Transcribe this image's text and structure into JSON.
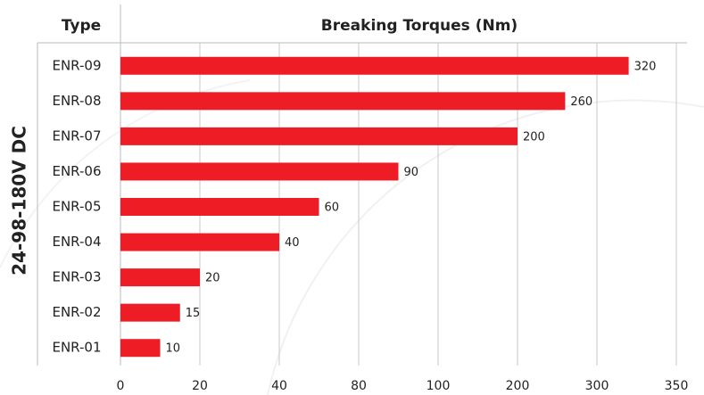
{
  "chart_data": {
    "type": "bar",
    "orientation": "horizontal",
    "title": "Breaking Torques (Nm)",
    "category_header": "Type",
    "group_label": "24-98-180V DC",
    "categories": [
      "ENR-09",
      "ENR-08",
      "ENR-07",
      "ENR-06",
      "ENR-05",
      "ENR-04",
      "ENR-03",
      "ENR-02",
      "ENR-01"
    ],
    "values": [
      320,
      260,
      200,
      90,
      60,
      40,
      20,
      15,
      10
    ],
    "color": "#ee1c25",
    "xlim": [
      0,
      350
    ],
    "xticks": [
      0,
      20,
      40,
      80,
      100,
      200,
      300,
      350
    ],
    "grid": true
  }
}
